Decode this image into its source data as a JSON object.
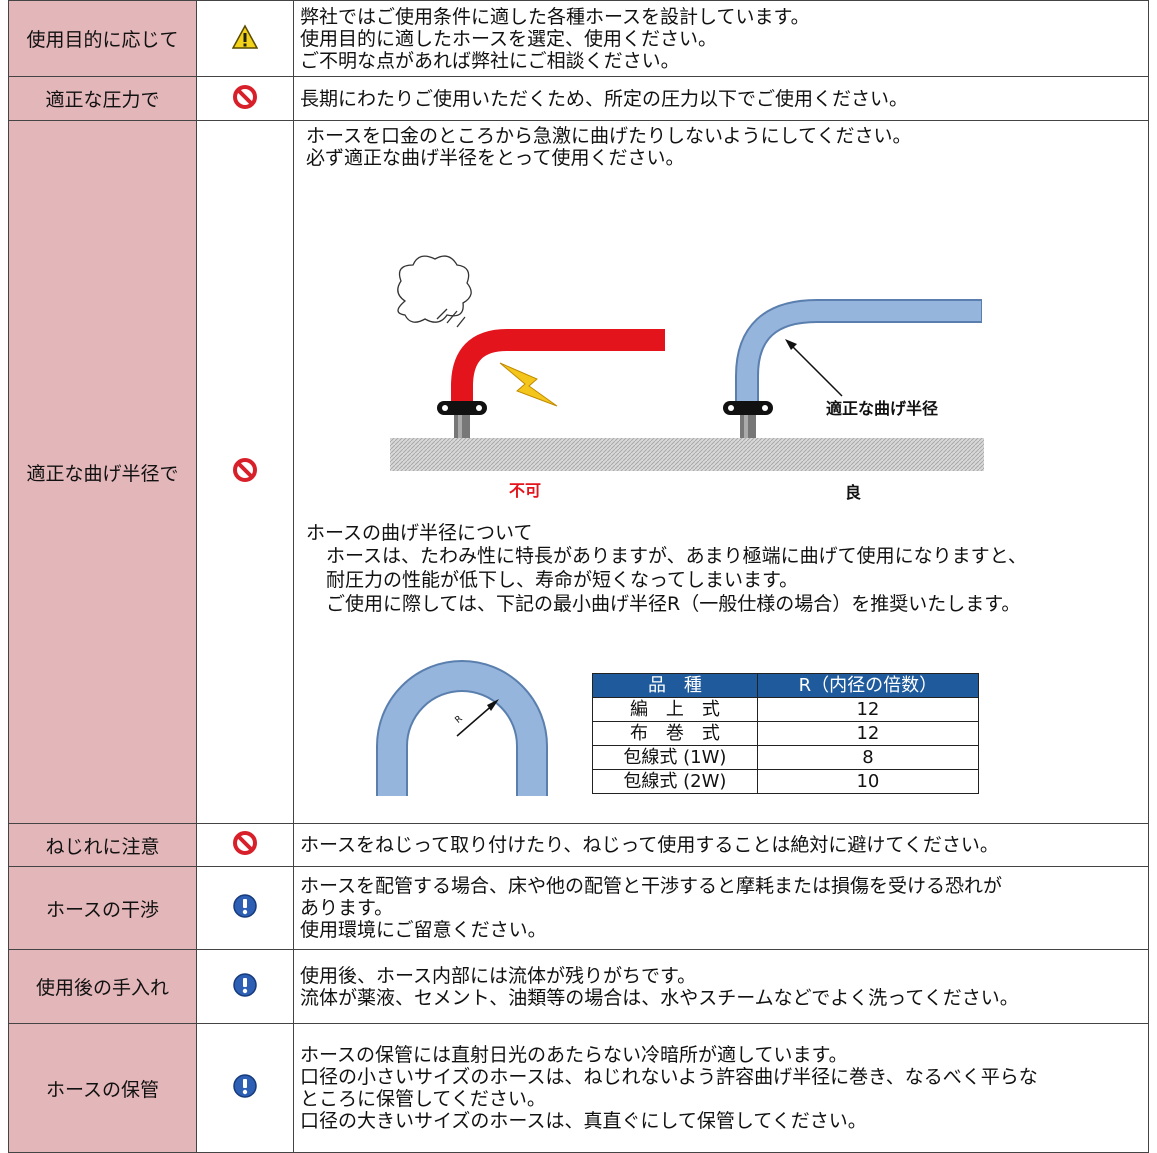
{
  "rows": [
    {
      "label": "使用目的に応じて",
      "icon": "caution",
      "lines": [
        "弊社ではご使用条件に適した各種ホースを設計しています。",
        "使用目的に適したホースを選定、使用ください。",
        "ご不明な点があれば弊社にご相談ください。"
      ]
    },
    {
      "label": "適正な圧力で",
      "icon": "prohibition",
      "lines": [
        "長期にわたりご使用いただくため、所定の圧力以下でご使用ください。"
      ]
    },
    {
      "label": "適正な曲げ半径で",
      "icon": "prohibition",
      "lines": [
        "ホースを口金のところから急激に曲げたりしないようにしてください。",
        "必ず適正な曲げ半径をとって使用ください。"
      ],
      "figure": {
        "bad": "不可",
        "good": "良",
        "radius": "適正な曲げ半径",
        "r": "R"
      },
      "note": {
        "heading": "ホースの曲げ半径について",
        "lines": [
          "ホースは、たわみ性に特長がありますが、あまり極端に曲げて使用になりますと、",
          "耐圧力の性能が低下し、寿命が短くなってしまいます。",
          "ご使用に際しては、下記の最小曲げ半径R（一般仕様の場合）を推奨いたします。"
        ]
      },
      "table": {
        "header": [
          "品　種",
          "R（内径の倍数）"
        ],
        "rows": [
          [
            "編　上　式",
            12
          ],
          [
            "布　巻　式",
            12
          ],
          [
            "包線式 (1W)",
            8
          ],
          [
            "包線式 (2W)",
            10
          ]
        ]
      }
    },
    {
      "label": "ねじれに注意",
      "icon": "prohibition",
      "lines": [
        "ホースをねじって取り付けたり、ねじって使用することは絶対に避けてください。"
      ]
    },
    {
      "label": "ホースの干渉",
      "icon": "notice",
      "lines": [
        "ホースを配管する場合、床や他の配管と干渉すると摩耗または損傷を受ける恐れが",
        "あります。",
        "使用環境にご留意ください。"
      ]
    },
    {
      "label": "使用後の手入れ",
      "icon": "notice",
      "lines": [
        "使用後、ホース内部には流体が残りがちです。",
        "流体が薬液、セメント、油類等の場合は、水やスチームなどでよく洗ってください。"
      ]
    },
    {
      "label": "ホースの保管",
      "icon": "notice",
      "lines": [
        "ホースの保管には直射日光のあたらない冷暗所が適しています。",
        "口径の小さいサイズのホースは、ねじれないよう許容曲げ半径に巻き、なるべく平らな",
        "ところに保管してください。",
        "口径の大きいサイズのホースは、真直ぐにして保管してください。"
      ]
    }
  ]
}
